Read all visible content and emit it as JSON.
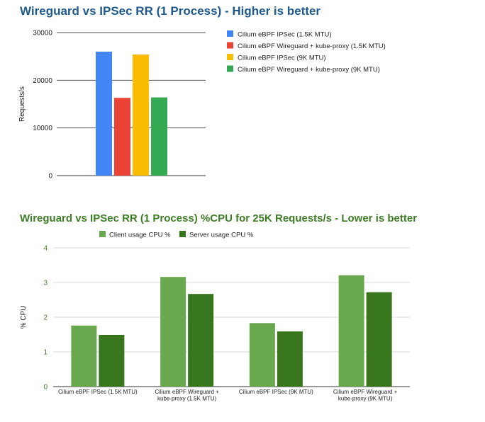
{
  "chart_data": [
    {
      "type": "bar",
      "title": "Wireguard vs IPSec RR (1 Process) - Higher is better",
      "xlabel": "",
      "ylabel": "Requests/s",
      "ylim": [
        0,
        30000
      ],
      "yticks": [
        "0",
        "10000",
        "20000",
        "30000"
      ],
      "grid": true,
      "legend_position": "right",
      "categories": [
        ""
      ],
      "series": [
        {
          "name": "Cilium eBPF IPSec (1.5K MTU)",
          "color": "#4285f4",
          "values": [
            26000
          ]
        },
        {
          "name": "Cilium eBPF Wireguard + kube-proxy (1.5K MTU)",
          "color": "#ea4335",
          "values": [
            16300
          ]
        },
        {
          "name": "Cilium eBPF IPSec (9K MTU)",
          "color": "#fbbc04",
          "values": [
            25400
          ]
        },
        {
          "name": "Cilium eBPF Wireguard + kube-proxy (9K MTU)",
          "color": "#34a853",
          "values": [
            16400
          ]
        }
      ]
    },
    {
      "type": "bar",
      "title": "Wireguard vs IPSec RR (1 Process) %CPU for 25K Requests/s - Lower is better",
      "xlabel": "",
      "ylabel": "% CPU",
      "ylim": [
        0,
        4
      ],
      "yticks": [
        "0",
        "1",
        "2",
        "3",
        "4"
      ],
      "grid": true,
      "legend_position": "top",
      "categories": [
        [
          "Cilium eBPF IPSec (1.5K MTU)"
        ],
        [
          "Cilium eBPF Wireguard +",
          "kube-proxy (1.5K MTU)"
        ],
        [
          "Cilium eBPF IPSec (9K MTU)"
        ],
        [
          "Cilium eBPF Wireguard +",
          "kube-proxy (9K MTU)"
        ]
      ],
      "series": [
        {
          "name": "Client usage CPU %",
          "color": "#6aa84f",
          "values": [
            1.76,
            3.16,
            1.83,
            3.21
          ]
        },
        {
          "name": "Server usage CPU %",
          "color": "#38761d",
          "values": [
            1.49,
            2.67,
            1.59,
            2.72
          ]
        }
      ]
    }
  ]
}
